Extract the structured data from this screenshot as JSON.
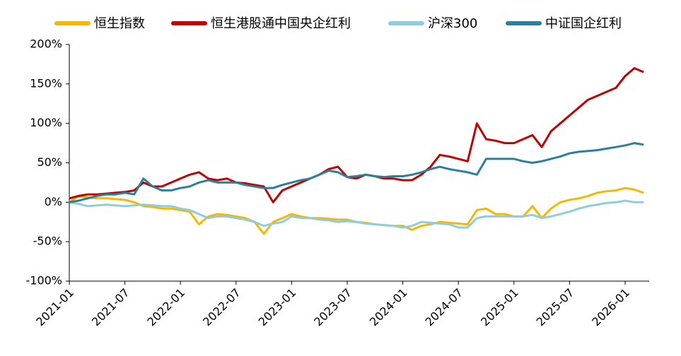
{
  "chart_data": {
    "type": "line",
    "x": [
      "2021-01",
      "2021-02",
      "2021-03",
      "2021-04",
      "2021-05",
      "2021-06",
      "2021-07",
      "2021-08",
      "2021-09",
      "2021-10",
      "2021-11",
      "2021-12",
      "2022-01",
      "2022-02",
      "2022-03",
      "2022-04",
      "2022-05",
      "2022-06",
      "2022-07",
      "2022-08",
      "2022-09",
      "2022-10",
      "2022-11",
      "2022-12",
      "2023-01",
      "2023-02",
      "2023-03",
      "2023-04",
      "2023-05",
      "2023-06",
      "2023-07",
      "2023-08",
      "2023-09",
      "2023-10",
      "2023-11",
      "2023-12",
      "2024-01",
      "2024-02",
      "2024-03",
      "2024-04",
      "2024-05",
      "2024-06",
      "2024-07",
      "2024-08",
      "2024-09",
      "2024-10",
      "2024-11",
      "2024-12",
      "2025-01",
      "2025-02",
      "2025-03",
      "2025-04",
      "2025-05",
      "2025-06",
      "2025-07",
      "2025-08",
      "2025-09",
      "2025-10",
      "2025-11",
      "2025-12",
      "2026-01",
      "2026-02",
      "2026-03"
    ],
    "xticks": [
      "2021-01",
      "2021-07",
      "2022-01",
      "2022-07",
      "2023-01",
      "2023-07",
      "2024-01",
      "2024-07",
      "2025-01",
      "2025-07",
      "2026-01"
    ],
    "ylim": [
      -100,
      200
    ],
    "yticks": [
      {
        "value": -100,
        "label": "-100%"
      },
      {
        "value": -50,
        "label": "-50%"
      },
      {
        "value": 0,
        "label": "0%"
      },
      {
        "value": 50,
        "label": "50%"
      },
      {
        "value": 100,
        "label": "100%"
      },
      {
        "value": 150,
        "label": "150%"
      },
      {
        "value": 200,
        "label": "200%"
      }
    ],
    "legend": "top",
    "series": [
      {
        "name": "恒生指数",
        "color": "#f5b800",
        "values": [
          0,
          8,
          6,
          5,
          5,
          4,
          3,
          0,
          -5,
          -6,
          -8,
          -8,
          -10,
          -12,
          -28,
          -18,
          -15,
          -16,
          -18,
          -20,
          -25,
          -40,
          -25,
          -20,
          -15,
          -18,
          -20,
          -20,
          -21,
          -22,
          -22,
          -25,
          -26,
          -28,
          -29,
          -30,
          -30,
          -35,
          -30,
          -28,
          -25,
          -26,
          -27,
          -28,
          -10,
          -8,
          -15,
          -15,
          -18,
          -18,
          -5,
          -20,
          -8,
          0,
          3,
          5,
          8,
          12,
          14,
          15,
          18,
          16,
          12
        ]
      },
      {
        "name": "恒生港股通中国央企红利",
        "color": "#c00000",
        "values": [
          5,
          8,
          10,
          10,
          11,
          12,
          13,
          15,
          25,
          20,
          20,
          25,
          30,
          35,
          38,
          30,
          28,
          30,
          25,
          24,
          22,
          20,
          0,
          15,
          20,
          25,
          30,
          35,
          42,
          45,
          32,
          30,
          35,
          33,
          30,
          30,
          28,
          28,
          35,
          45,
          60,
          58,
          55,
          52,
          100,
          80,
          78,
          75,
          75,
          80,
          85,
          70,
          90,
          100,
          110,
          120,
          130,
          135,
          140,
          145,
          160,
          170,
          165
        ]
      },
      {
        "name": "沪深300",
        "color": "#8fcce0",
        "values": [
          0,
          -2,
          -5,
          -4,
          -3,
          -4,
          -5,
          -4,
          -3,
          -4,
          -5,
          -5,
          -8,
          -10,
          -15,
          -20,
          -18,
          -18,
          -20,
          -22,
          -25,
          -30,
          -27,
          -25,
          -18,
          -20,
          -20,
          -22,
          -23,
          -25,
          -24,
          -25,
          -27,
          -28,
          -29,
          -30,
          -32,
          -30,
          -25,
          -26,
          -27,
          -28,
          -32,
          -32,
          -20,
          -18,
          -18,
          -18,
          -18,
          -18,
          -16,
          -20,
          -18,
          -15,
          -12,
          -8,
          -5,
          -3,
          -1,
          0,
          2,
          0,
          0
        ]
      },
      {
        "name": "中证国企红利",
        "color": "#2a7f9a",
        "values": [
          0,
          2,
          5,
          8,
          10,
          10,
          12,
          10,
          30,
          20,
          15,
          15,
          18,
          20,
          25,
          28,
          25,
          25,
          25,
          22,
          20,
          18,
          18,
          22,
          25,
          28,
          30,
          35,
          40,
          38,
          32,
          33,
          35,
          33,
          32,
          33,
          33,
          35,
          38,
          42,
          45,
          42,
          40,
          38,
          35,
          55,
          55,
          55,
          55,
          52,
          50,
          52,
          55,
          58,
          62,
          64,
          65,
          66,
          68,
          70,
          72,
          75,
          73
        ]
      }
    ]
  }
}
